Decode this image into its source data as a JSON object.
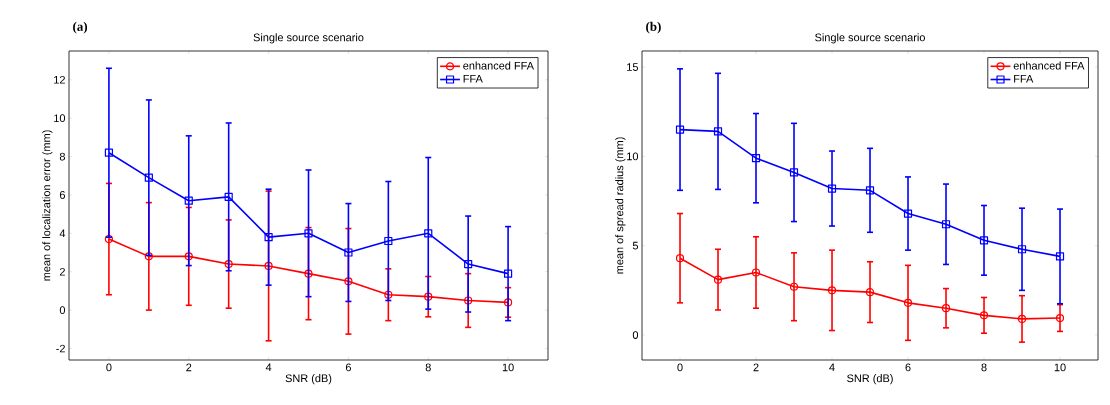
{
  "chart_data": [
    {
      "type": "line",
      "title": "Single source scenario",
      "xlabel": "SNR (dB)",
      "ylabel": "mean of localization error (mm)",
      "annotations": [
        "(a)"
      ],
      "x": [
        0,
        1,
        2,
        3,
        4,
        5,
        6,
        7,
        8,
        9,
        10
      ],
      "series": [
        {
          "name": "enhanced FFA",
          "color": "#ff0000",
          "marker": "circle",
          "values": [
            3.7,
            2.8,
            2.8,
            2.4,
            2.3,
            1.9,
            1.5,
            0.8,
            0.7,
            0.5,
            0.4
          ],
          "errors": [
            2.9,
            2.8,
            2.55,
            2.3,
            3.9,
            2.4,
            2.75,
            1.35,
            1.05,
            1.4,
            0.77
          ]
        },
        {
          "name": "FFA",
          "color": "#0000ff",
          "marker": "square",
          "values": [
            8.2,
            6.9,
            5.7,
            5.9,
            3.8,
            4.0,
            3.0,
            3.6,
            4.0,
            2.4,
            1.9
          ],
          "errors": [
            4.4,
            4.05,
            3.38,
            3.85,
            2.5,
            3.3,
            2.55,
            3.1,
            3.95,
            2.5,
            2.45
          ]
        }
      ],
      "xlim": [
        -1,
        11
      ],
      "ylim": [
        -2.6,
        13.5
      ],
      "xticks": [
        0,
        2,
        4,
        6,
        8,
        10
      ],
      "yticks": [
        -2,
        0,
        2,
        4,
        6,
        8,
        10,
        12
      ],
      "grid": false,
      "legend": "top right",
      "line_style": "solid"
    },
    {
      "type": "line",
      "title": "Single source scenario",
      "xlabel": "SNR (dB)",
      "ylabel": "mean of spread radius (mm)",
      "annotations": [
        "(b)"
      ],
      "x": [
        0,
        1,
        2,
        3,
        4,
        5,
        6,
        7,
        8,
        9,
        10
      ],
      "series": [
        {
          "name": "enhanced FFA",
          "color": "#ff0000",
          "marker": "circle",
          "values": [
            4.3,
            3.1,
            3.5,
            2.7,
            2.5,
            2.4,
            1.8,
            1.5,
            1.1,
            0.9,
            0.95
          ],
          "errors": [
            2.5,
            1.7,
            2.0,
            1.9,
            2.25,
            1.7,
            2.1,
            1.1,
            1.0,
            1.3,
            0.75
          ]
        },
        {
          "name": "FFA",
          "color": "#0000ff",
          "marker": "square",
          "values": [
            11.5,
            11.4,
            9.9,
            9.1,
            8.2,
            8.1,
            6.8,
            6.2,
            5.3,
            4.8,
            4.4
          ],
          "errors": [
            3.4,
            3.25,
            2.5,
            2.75,
            2.1,
            2.35,
            2.05,
            2.25,
            1.95,
            2.3,
            2.65
          ]
        }
      ],
      "xlim": [
        -1,
        11
      ],
      "ylim": [
        -1.4,
        15.9
      ],
      "xticks": [
        0,
        2,
        4,
        6,
        8,
        10
      ],
      "yticks": [
        0,
        5,
        10,
        15
      ],
      "grid": false,
      "legend": "top right",
      "line_style": "solid"
    }
  ]
}
